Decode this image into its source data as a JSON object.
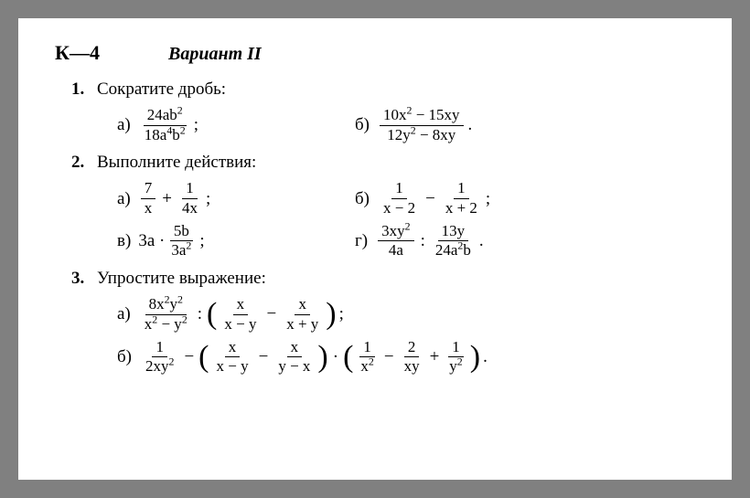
{
  "background_color": "#808080",
  "page_color": "#ffffff",
  "text_color": "#000000",
  "header": {
    "k4": "К—4",
    "variant": "Вариант  II"
  },
  "p1": {
    "num": "1.",
    "title": "Сократите дробь:",
    "a_letter": "а)",
    "a_num": "24ab",
    "a_num_sup": "2",
    "a_den": "18a",
    "a_den_sup1": "4",
    "a_den_b": "b",
    "a_den_sup2": "2",
    "a_end": ";",
    "b_letter": "б)",
    "b_num_t1": "10x",
    "b_num_sup1": "2",
    "b_num_t2": " − 15xy",
    "b_den_t1": "12y",
    "b_den_sup1": "2",
    "b_den_t2": " − 8xy",
    "b_end": "."
  },
  "p2": {
    "num": "2.",
    "title": "Выполните действия:",
    "a_letter": "а)",
    "a_f1n": "7",
    "a_f1d": "x",
    "a_op": "+",
    "a_f2n": "1",
    "a_f2d": "4x",
    "a_end": ";",
    "b_letter": "б)",
    "b_f1n": "1",
    "b_f1d": "x − 2",
    "b_op": "−",
    "b_f2n": "1",
    "b_f2d": "x + 2",
    "b_end": ";",
    "v_letter": "в)",
    "v_t1": "3a ·",
    "v_f1n": "5b",
    "v_f1d_t": "3a",
    "v_f1d_sup": "2",
    "v_end": ";",
    "g_letter": "г)",
    "g_f1n_t": "3xy",
    "g_f1n_sup": "2",
    "g_f1d": "4a",
    "g_op": ":",
    "g_f2n": "13y",
    "g_f2d_t1": "24a",
    "g_f2d_sup": "2",
    "g_f2d_t2": "b",
    "g_end": "."
  },
  "p3": {
    "num": "3.",
    "title": "Упростите выражение:",
    "a_letter": "а)",
    "a_f1n_t1": "8x",
    "a_f1n_s1": "2",
    "a_f1n_t2": "y",
    "a_f1n_s2": "2",
    "a_f1d_t1": "x",
    "a_f1d_s1": "2",
    "a_f1d_t2": " − y",
    "a_f1d_s2": "2",
    "a_op1": ":",
    "a_f2n": "x",
    "a_f2d": "x − y",
    "a_op2": "−",
    "a_f3n": "x",
    "a_f3d": "x + y",
    "a_end": ";",
    "b_letter": "б)",
    "b_f1n": "1",
    "b_f1d_t": "2xy",
    "b_f1d_sup": "2",
    "b_op1": "−",
    "b_f2n": "x",
    "b_f2d": "x − y",
    "b_op2": "−",
    "b_f3n": "x",
    "b_f3d": "y − x",
    "b_op3": "·",
    "b_f4n": "1",
    "b_f4d_t": "x",
    "b_f4d_sup": "2",
    "b_op4": "−",
    "b_f5n": "2",
    "b_f5d": "xy",
    "b_op5": "+",
    "b_f6n": "1",
    "b_f6d_t": "y",
    "b_f6d_sup": "2",
    "b_end": "."
  }
}
